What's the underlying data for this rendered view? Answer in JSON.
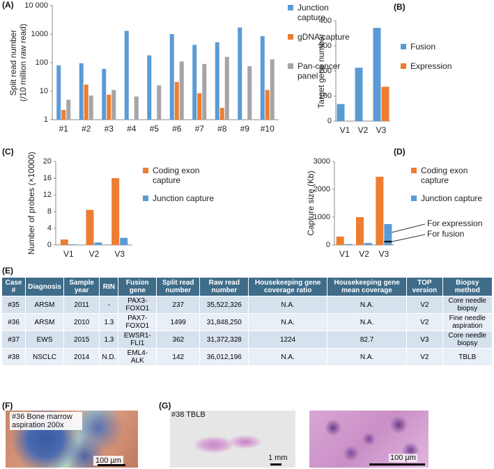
{
  "chart_data": [
    {
      "type": "bar",
      "label": "(A)",
      "y_label": [
        "Split read number",
        "(/10 million raw read)"
      ],
      "categories": [
        "#1",
        "#2",
        "#3",
        "#4",
        "#5",
        "#6",
        "#7",
        "#8",
        "#9",
        "#10"
      ],
      "series": [
        {
          "name": "Junction capture",
          "color": "#5b9bd5",
          "values": [
            80,
            95,
            60,
            1300,
            180,
            1000,
            420,
            520,
            1700,
            850
          ]
        },
        {
          "name": "gDNA capture",
          "color": "#ed7d31",
          "values": [
            2.2,
            17,
            7.5,
            null,
            null,
            21,
            8.5,
            2.6,
            null,
            11
          ]
        },
        {
          "name": "Pan-cancer panel",
          "color": "#a5a5a5",
          "values": [
            5,
            7,
            11,
            6.5,
            16,
            110,
            90,
            160,
            75,
            130
          ]
        }
      ],
      "ylim": [
        1,
        10000
      ],
      "yticks": [
        1,
        10,
        100,
        1000,
        {
          "value": 10000,
          "label": "10 000"
        }
      ],
      "log_scale": true
    },
    {
      "type": "bar",
      "label": "(B)",
      "y_label": [
        "Target gene number"
      ],
      "categories": [
        "V1",
        "V2",
        "V3"
      ],
      "series": [
        {
          "name": "Fusion",
          "color": "#5b9bd5",
          "values": [
            68,
            213,
            372
          ]
        },
        {
          "name": "Expression",
          "color": "#ed7d31",
          "values": [
            null,
            null,
            137
          ]
        }
      ],
      "ylim": [
        0,
        400
      ],
      "yticks": [
        0,
        100,
        200,
        300,
        400
      ],
      "log_scale": false
    },
    {
      "type": "bar",
      "label": "(C)",
      "y_label": [
        "Number of probes (×10000)"
      ],
      "categories": [
        "V1",
        "V2",
        "V3"
      ],
      "series": [
        {
          "name": "Coding exon capture",
          "color": "#ed7d31",
          "values": [
            1.3,
            8.4,
            16
          ]
        },
        {
          "name": "Junction capture",
          "color": "#5b9bd5",
          "values": [
            0.15,
            0.6,
            1.7
          ]
        }
      ],
      "ylim": [
        0,
        20
      ],
      "yticks": [
        0,
        4,
        8,
        12,
        16,
        20
      ],
      "log_scale": false
    },
    {
      "type": "bar",
      "label": "(D)",
      "y_label": [
        "Capture size (Kb)"
      ],
      "categories": [
        "V1",
        "V2",
        "V3"
      ],
      "series": [
        {
          "name": "Coding exon capture",
          "color": "#ed7d31",
          "values": [
            300,
            1000,
            2450
          ]
        },
        {
          "name": "Junction capture",
          "color": "#5b9bd5",
          "values": [
            30,
            70,
            750
          ]
        }
      ],
      "ylim": [
        0,
        3000
      ],
      "yticks": [
        0,
        1000,
        2000,
        3000
      ],
      "log_scale": false,
      "annotations": [
        {
          "text": "For expression",
          "value": 450
        },
        {
          "text": "For fusion",
          "value": 120
        }
      ]
    }
  ],
  "table": {
    "label": "(E)",
    "header": [
      "Case #",
      "Diagnosis",
      "Sample year",
      "RIN",
      "Fusion gene",
      "Split read number",
      "Raw read number",
      "Housekeeping gene coverage ratio",
      "Housekeeping gene mean coverage",
      "TOP version",
      "Biopsy method"
    ],
    "rows": [
      [
        "#35",
        "ARSM",
        "2011",
        "-",
        "PAX3-FOXO1",
        "237",
        "35,522,326",
        "N.A.",
        "N.A.",
        "V2",
        "Core needle biopsy"
      ],
      [
        "#36",
        "ARSM",
        "2010",
        "1.3",
        "PAX7-FOXO1",
        "1499",
        "31,848,250",
        "N.A.",
        "N.A.",
        "V2",
        "Fine needle aspiration"
      ],
      [
        "#37",
        "EWS",
        "2015",
        "1.3",
        "EWSR1-FLI1",
        "362",
        "31,372,328",
        "1224",
        "82.7",
        "V3",
        "Core needle biopsy"
      ],
      [
        "#38",
        "NSCLC",
        "2014",
        "N.D.",
        "EML4-ALK",
        "142",
        "36,012,196",
        "N.A.",
        "N.A.",
        "V2",
        "TBLB"
      ]
    ]
  },
  "images": {
    "f": {
      "label": "(F)",
      "caption": "#36 Bone marrow aspiration  200x",
      "scale": "100 µm"
    },
    "g": {
      "label": "(G)",
      "caption": "#38 TBLB",
      "scale_left": "1 mm",
      "scale_right": "100 µm"
    }
  }
}
